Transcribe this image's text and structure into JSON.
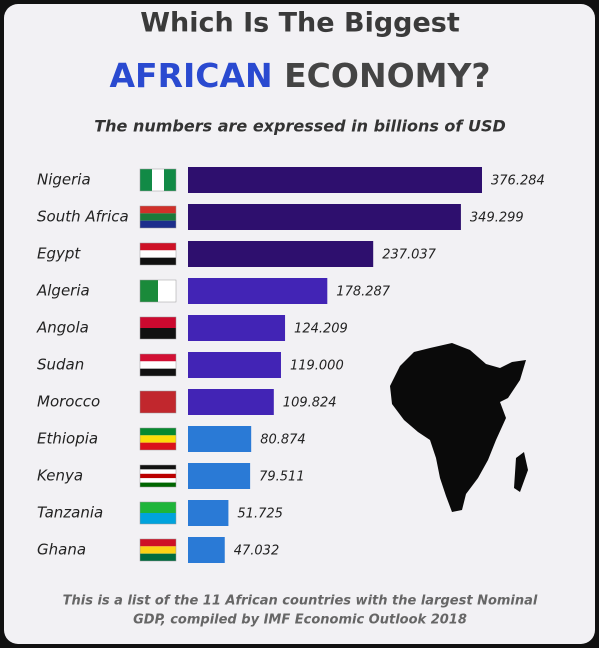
{
  "chart_data": {
    "type": "bar",
    "orientation": "horizontal",
    "title": [
      "Which Is The Biggest",
      "AFRICAN",
      "ECONOMY?"
    ],
    "title_colors": [
      "#3a3a3a",
      "#2a4ad0",
      "#444444"
    ],
    "subtitle": "The numbers are expressed in billions of USD",
    "categories": [
      "Nigeria",
      "South Africa",
      "Egypt",
      "Algeria",
      "Angola",
      "Sudan",
      "Morocco",
      "Ethiopia",
      "Kenya",
      "Tanzania",
      "Ghana"
    ],
    "values": [
      376.284,
      349.299,
      237.037,
      178.287,
      124.209,
      119.0,
      109.824,
      80.874,
      79.511,
      51.725,
      47.032
    ],
    "value_labels": [
      "376.284",
      "349.299",
      "237.037",
      "178.287",
      "124.209",
      "119.000",
      "109.824",
      "80.874",
      "79.511",
      "51.725",
      "47.032"
    ],
    "colors": [
      "#2e0f6e",
      "#2e0f6e",
      "#2e0f6e",
      "#4224b5",
      "#4224b5",
      "#4224b5",
      "#4224b5",
      "#2a7ad6",
      "#2a7ad6",
      "#2a7ad6",
      "#2a7ad6"
    ],
    "footnote": [
      "This is a list of the 11 African countries with the largest Nominal",
      "GDP, compiled by IMF Economic Outlook 2018"
    ]
  }
}
